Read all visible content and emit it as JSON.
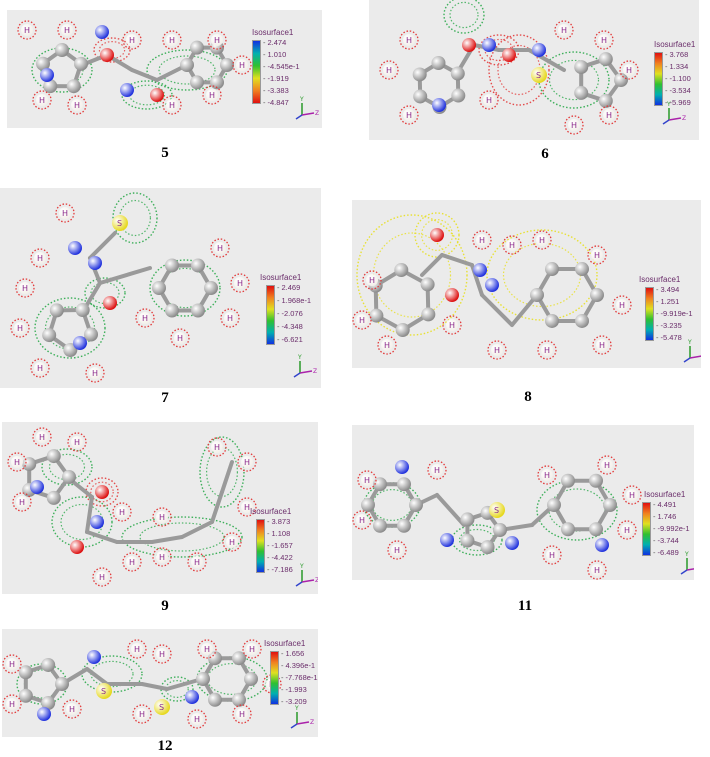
{
  "panels": [
    {
      "caption": "5",
      "legend_title": "Isosurface1",
      "ticks": [
        "2.474",
        "1.010",
        "-4.545e-1",
        "-1.919",
        "-3.383",
        "-4.847"
      ],
      "scale": "blue-to-red"
    },
    {
      "caption": "6",
      "legend_title": "Isosurface1",
      "ticks": [
        "3.768",
        "1.334",
        "-1.100",
        "-3.534",
        "-5.969"
      ],
      "scale": "red-to-blue"
    },
    {
      "caption": "7",
      "legend_title": "Isosurface1",
      "ticks": [
        "2.469",
        "1.968e-1",
        "-2.076",
        "-4.348",
        "-6.621"
      ],
      "scale": "red-to-blue"
    },
    {
      "caption": "8",
      "legend_title": "Isosurface1",
      "ticks": [
        "3.494",
        "1.251",
        "-9.919e-1",
        "-3.235",
        "-5.478"
      ],
      "scale": "red-to-blue"
    },
    {
      "caption": "9",
      "legend_title": "Isosurface1",
      "ticks": [
        "3.873",
        "1.108",
        "-1.657",
        "-4.422",
        "-7.186"
      ],
      "scale": "red-to-blue"
    },
    {
      "caption": "11",
      "legend_title": "Isosurface1",
      "ticks": [
        "4.491",
        "1.746",
        "-9.992e-1",
        "-3.744",
        "-6.489"
      ],
      "scale": "red-to-blue"
    },
    {
      "caption": "12",
      "legend_title": "Isosurface1",
      "ticks": [
        "1.656",
        "4.396e-1",
        "-7.768e-1",
        "-1.993",
        "-3.209"
      ],
      "scale": "red-to-blue"
    }
  ],
  "atom_label": "H",
  "sulfur_label": "S",
  "axis_labels": {
    "y": "Y",
    "z": "Z"
  },
  "colors": {
    "panel_bg": "#ebebeb",
    "carbon": "#8c8c8c",
    "hydrogen": "#f4f0ea",
    "nitrogen": "#2233dd",
    "oxygen": "#dd1111",
    "sulfur": "#e6d81e",
    "mesh_green": "#2aa84a",
    "mesh_red": "#e23a3a",
    "mesh_yellow": "#e8e020"
  }
}
